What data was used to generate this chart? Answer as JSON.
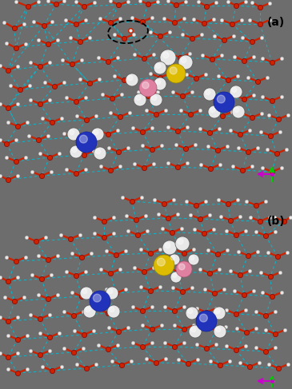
{
  "background_color": "#6d6d6d",
  "figsize": [
    3.65,
    4.87
  ],
  "dpi": 100,
  "panel_a_label": "(a)",
  "panel_b_label": "(b)",
  "label_fontsize": 10,
  "label_color": "black",
  "label_fontweight": "bold",
  "cyan_color": "#00bcd4",
  "red_color": "#cc2200",
  "white_color": "#e8e8e8",
  "blue_color": "#2233bb",
  "yellow_color": "#ddbb00",
  "pink_color": "#e080a0",
  "green_arrow": "#00cc00",
  "magenta_arrow": "#cc00cc"
}
